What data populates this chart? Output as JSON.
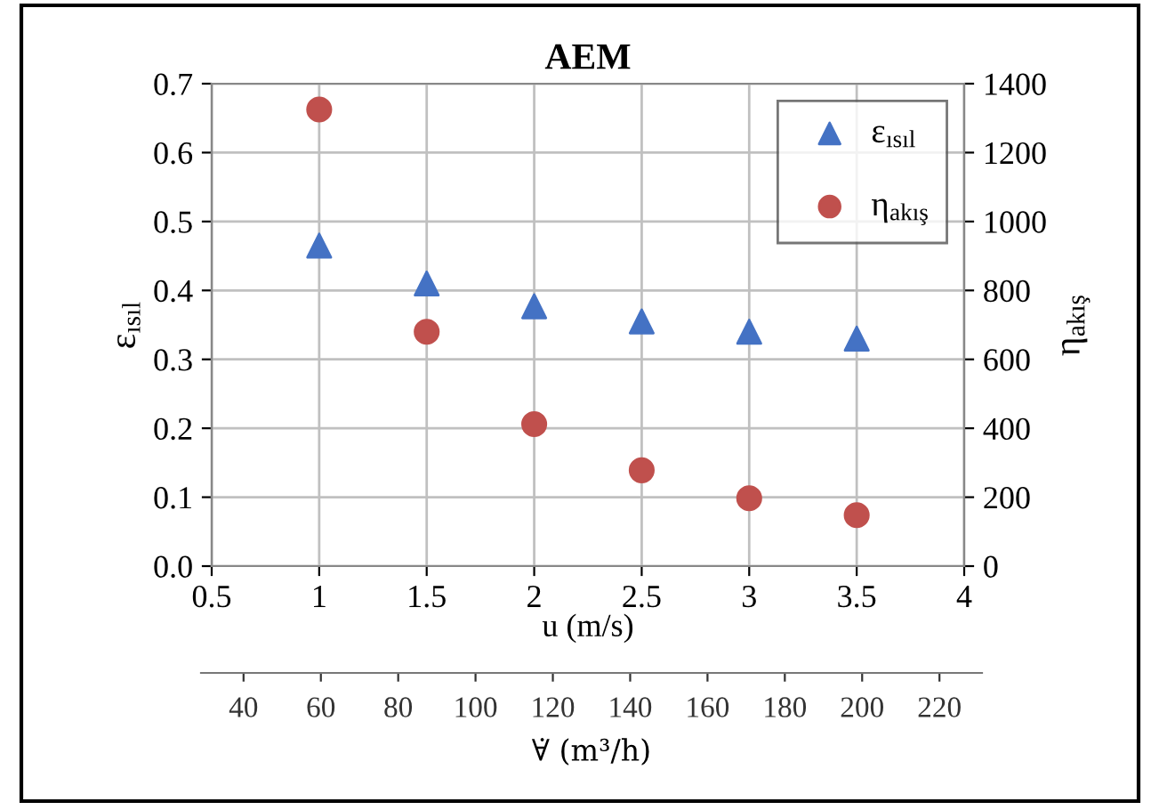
{
  "chart_data": {
    "type": "scatter",
    "title": "AEM",
    "xlabel": "u (m/s)",
    "ylabel": "ε$_{ısıl}$",
    "y2label": "η$_{akış}$",
    "x2label": "∀̇ (m³/h)",
    "x": [
      1,
      1.5,
      2,
      2.5,
      3,
      3.5
    ],
    "series": [
      {
        "name": "ε$_{ısıl}$",
        "color": "#4472c4",
        "marker": "triangle",
        "values": [
          0.465,
          0.41,
          0.377,
          0.355,
          0.34,
          0.33
        ]
      },
      {
        "name": "η$_{akış}$",
        "color": "#c0504d",
        "marker": "circle",
        "axis": "y2",
        "values": [
          1325,
          680,
          412,
          278,
          197,
          148
        ]
      }
    ],
    "xlim": [
      0.5,
      4
    ],
    "xticks": [
      0.5,
      1,
      1.5,
      2,
      2.5,
      3,
      3.5,
      4
    ],
    "ylim": [
      0,
      0.7
    ],
    "yticks": [
      {
        "value": 0,
        "label": "0.0"
      },
      0.1,
      0.2,
      0.3,
      0.4,
      0.5,
      0.6,
      0.7
    ],
    "y2lim": [
      0,
      1400
    ],
    "y2ticks": [
      0,
      200,
      400,
      600,
      800,
      1000,
      1200,
      1400
    ],
    "x2lim": [
      29,
      231
    ],
    "x2ticks": [
      40,
      60,
      80,
      100,
      120,
      140,
      160,
      180,
      200,
      220
    ],
    "grid": true,
    "legend": "top right"
  }
}
